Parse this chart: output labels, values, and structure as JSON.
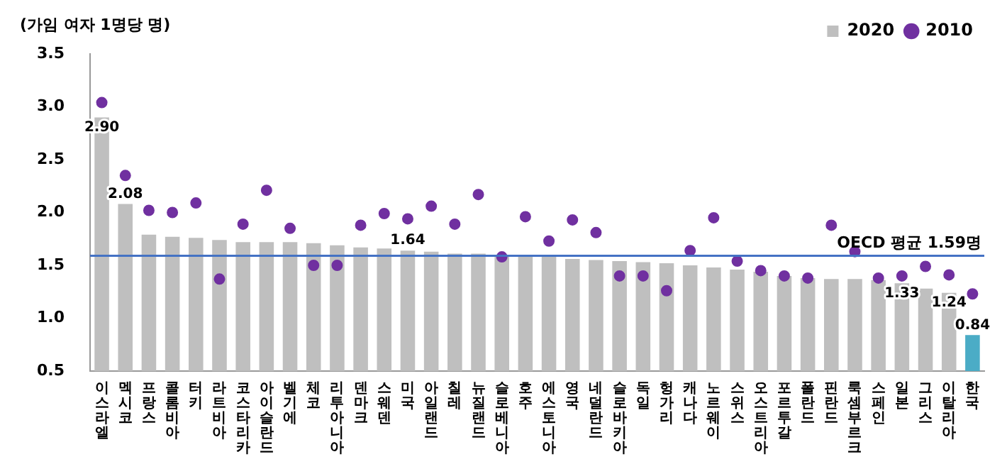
{
  "chart_data": {
    "type": "bar",
    "ylabel": "(가임 여자 1명당 명)",
    "categories": [
      "이스라엘",
      "멕시코",
      "프랑스",
      "콜롬비아",
      "터키",
      "라트비아",
      "코스타리카",
      "아이슬란드",
      "벨기에",
      "체코",
      "리투아니아",
      "덴마크",
      "스웨덴",
      "미국",
      "아일랜드",
      "칠레",
      "뉴질랜드",
      "슬로베니아",
      "호주",
      "에스토니아",
      "영국",
      "네덜란드",
      "슬로바키아",
      "독일",
      "헝가리",
      "캐나다",
      "노르웨이",
      "스위스",
      "오스트리아",
      "포르투갈",
      "폴란드",
      "핀란드",
      "룩셈부르크",
      "스페인",
      "일본",
      "그리스",
      "이탈리아",
      "한국"
    ],
    "series": [
      {
        "name": "2020",
        "color": "#bfbfbf",
        "colors": [
          "#bfbfbf",
          "#bfbfbf",
          "#bfbfbf",
          "#bfbfbf",
          "#bfbfbf",
          "#bfbfbf",
          "#bfbfbf",
          "#bfbfbf",
          "#bfbfbf",
          "#bfbfbf",
          "#bfbfbf",
          "#bfbfbf",
          "#bfbfbf",
          "#bfbfbf",
          "#bfbfbf",
          "#bfbfbf",
          "#bfbfbf",
          "#bfbfbf",
          "#bfbfbf",
          "#bfbfbf",
          "#bfbfbf",
          "#bfbfbf",
          "#bfbfbf",
          "#bfbfbf",
          "#bfbfbf",
          "#bfbfbf",
          "#bfbfbf",
          "#bfbfbf",
          "#bfbfbf",
          "#bfbfbf",
          "#bfbfbf",
          "#bfbfbf",
          "#bfbfbf",
          "#bfbfbf",
          "#bfbfbf",
          "#bfbfbf",
          "#bfbfbf",
          "#4bacc6"
        ],
        "values": [
          2.9,
          2.08,
          1.79,
          1.77,
          1.76,
          1.74,
          1.72,
          1.72,
          1.72,
          1.71,
          1.69,
          1.67,
          1.66,
          1.64,
          1.63,
          1.61,
          1.61,
          1.6,
          1.59,
          1.58,
          1.56,
          1.55,
          1.54,
          1.53,
          1.52,
          1.5,
          1.48,
          1.46,
          1.44,
          1.4,
          1.38,
          1.37,
          1.37,
          1.36,
          1.33,
          1.28,
          1.24,
          0.84
        ],
        "value_labels": [
          "2.90",
          "2.08",
          null,
          null,
          null,
          null,
          null,
          null,
          null,
          null,
          null,
          null,
          null,
          "1.64",
          null,
          null,
          null,
          null,
          null,
          null,
          null,
          null,
          null,
          null,
          null,
          null,
          null,
          null,
          null,
          null,
          null,
          null,
          null,
          null,
          "1.33",
          null,
          "1.24",
          "0.84"
        ]
      },
      {
        "name": "2010",
        "type": "scatter",
        "color": "#7030a0",
        "marker": "circle",
        "values": [
          3.04,
          2.35,
          2.02,
          2.0,
          2.09,
          1.37,
          1.89,
          2.21,
          1.85,
          1.5,
          1.5,
          1.88,
          1.99,
          1.94,
          2.06,
          1.89,
          2.17,
          1.58,
          1.96,
          1.73,
          1.93,
          1.81,
          1.4,
          1.4,
          1.26,
          1.64,
          1.95,
          1.54,
          1.45,
          1.4,
          1.38,
          1.88,
          1.63,
          1.38,
          1.4,
          1.49,
          1.41,
          1.23
        ]
      }
    ],
    "ylim": [
      0.5,
      3.5
    ],
    "yticks": [
      0.5,
      {
        "value": 1,
        "label": "1.0"
      },
      1.5,
      {
        "value": 2,
        "label": "2.0"
      },
      2.5,
      {
        "value": 3,
        "label": "3.0"
      },
      3.5
    ],
    "ref_lines": [
      {
        "axis": "y",
        "value": 1.59,
        "label": "OECD 평균 1.59명",
        "color": "#4472c4"
      }
    ],
    "legend": "top right",
    "grid": false
  }
}
